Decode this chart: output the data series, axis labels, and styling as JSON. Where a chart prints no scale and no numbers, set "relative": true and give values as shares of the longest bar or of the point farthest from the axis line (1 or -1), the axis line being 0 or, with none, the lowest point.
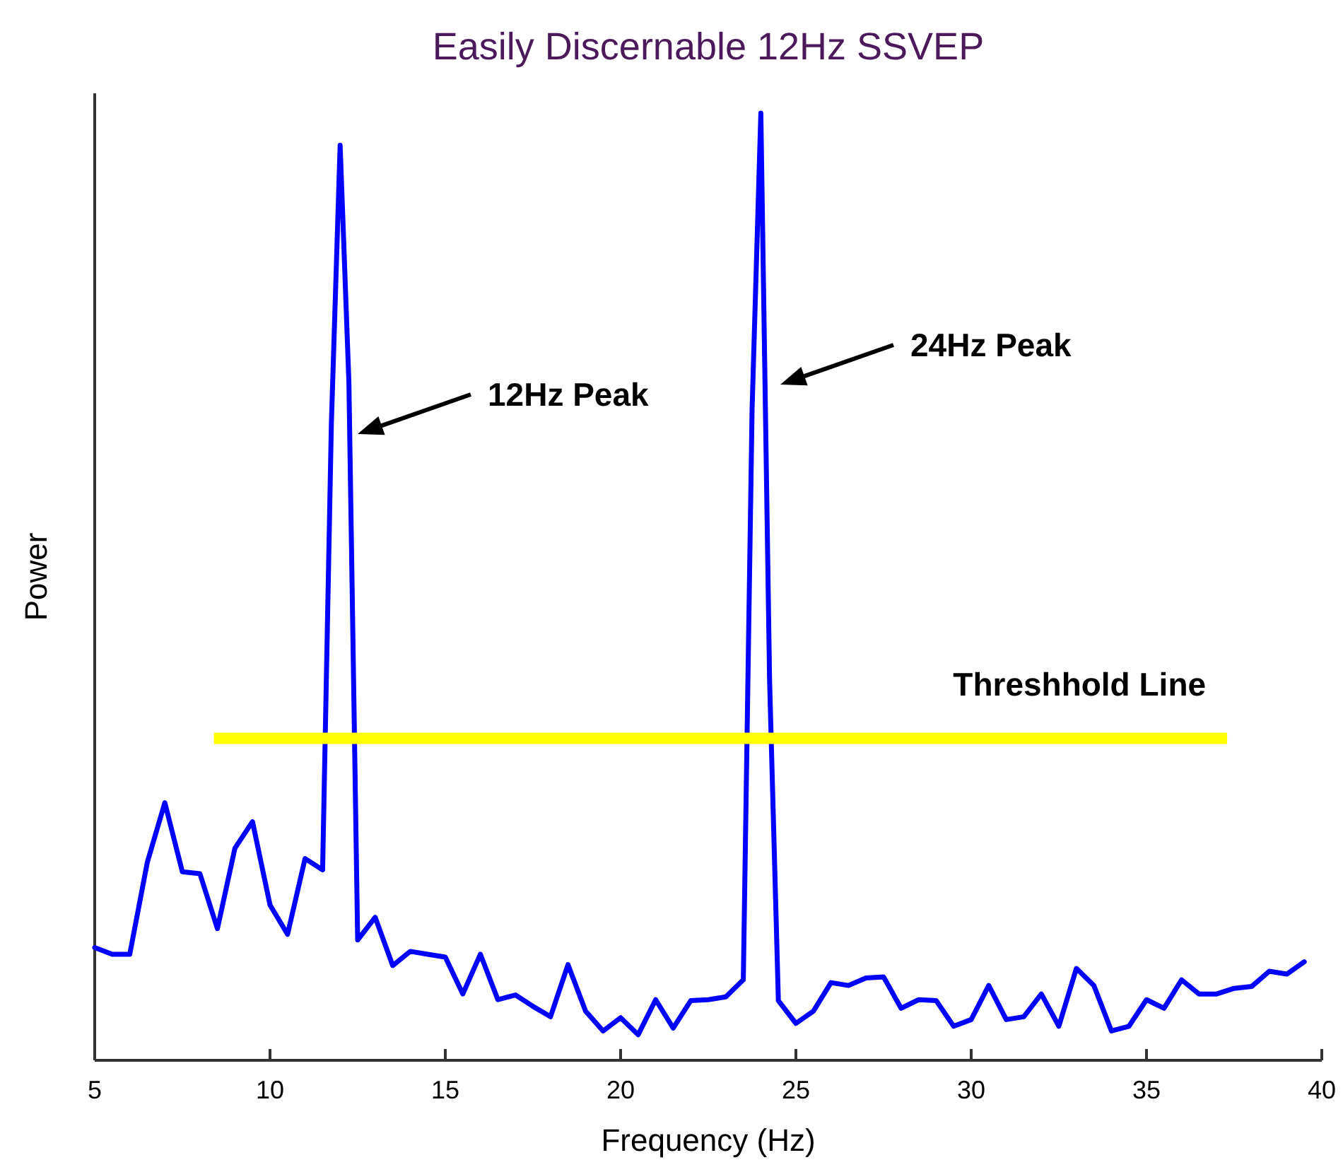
{
  "chart_data": {
    "type": "line",
    "title": "Easily Discernable 12Hz SSVEP",
    "xlabel": "Frequency (Hz)",
    "ylabel": "Power",
    "relative": true,
    "xlim": [
      5,
      40
    ],
    "xticks": [
      5,
      10,
      15,
      20,
      25,
      30,
      35,
      40
    ],
    "series": [
      {
        "color": "#0000ff",
        "x": [
          5,
          5.5,
          6,
          6.5,
          7,
          7.5,
          8,
          8.5,
          9,
          9.5,
          10,
          10.5,
          11,
          11.5,
          11.75,
          12,
          12.25,
          12.5,
          13,
          13.5,
          14,
          14.5,
          15,
          15.5,
          16,
          16.5,
          17,
          17.5,
          18,
          18.5,
          19,
          19.5,
          20,
          20.5,
          21,
          21.5,
          22,
          22.5,
          23,
          23.5,
          23.75,
          24,
          24.25,
          24.5,
          25,
          25.5,
          26,
          26.5,
          27,
          27.5,
          28,
          28.5,
          29,
          29.5,
          30,
          30.5,
          31,
          31.5,
          32,
          32.5,
          33,
          33.5,
          34,
          34.5,
          35,
          35.5,
          36,
          36.5,
          37,
          37.5,
          38,
          38.5,
          39,
          39.5
        ],
        "values": [
          0.119,
          0.112,
          0.112,
          0.209,
          0.272,
          0.199,
          0.197,
          0.139,
          0.224,
          0.252,
          0.164,
          0.133,
          0.213,
          0.201,
          0.672,
          0.966,
          0.716,
          0.127,
          0.151,
          0.1,
          0.115,
          0.112,
          0.109,
          0.07,
          0.112,
          0.064,
          0.069,
          0.057,
          0.046,
          0.101,
          0.052,
          0.031,
          0.045,
          0.027,
          0.064,
          0.034,
          0.063,
          0.064,
          0.067,
          0.085,
          0.687,
          1,
          0.4,
          0.063,
          0.039,
          0.052,
          0.082,
          0.079,
          0.087,
          0.088,
          0.055,
          0.064,
          0.063,
          0.036,
          0.043,
          0.079,
          0.043,
          0.046,
          0.07,
          0.036,
          0.097,
          0.079,
          0.031,
          0.036,
          0.064,
          0.055,
          0.085,
          0.07,
          0.07,
          0.076,
          0.078,
          0.094,
          0.091,
          0.104
        ]
      },
      {
        "name": "Threshhold Line",
        "color": "#ffff00",
        "x": [
          8.4,
          37.3
        ],
        "values": [
          0.34,
          0.34
        ]
      }
    ],
    "annotations": [
      "12Hz Peak",
      "24Hz Peak"
    ]
  }
}
